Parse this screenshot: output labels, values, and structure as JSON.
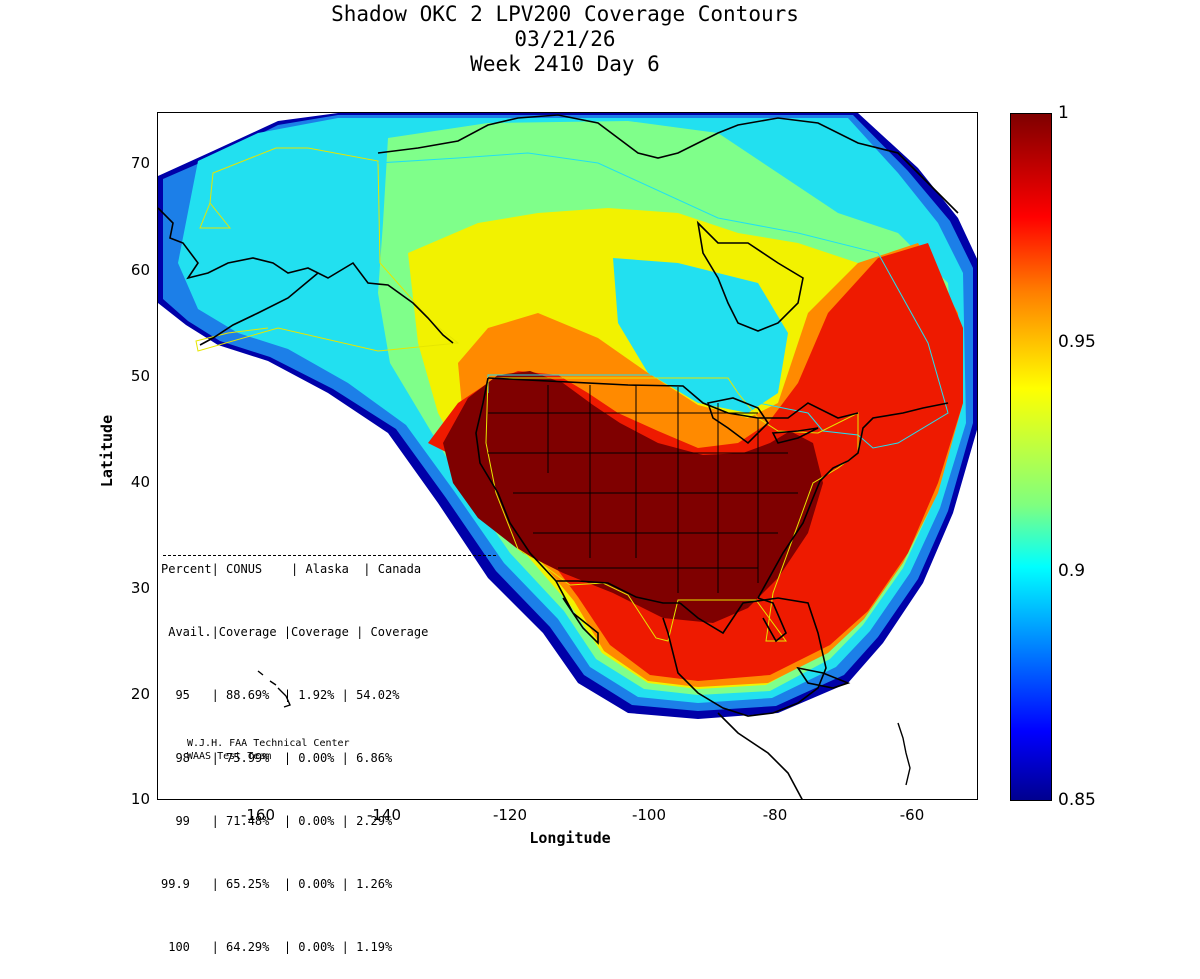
{
  "title": {
    "line1": "Shadow OKC 2 LPV200 Coverage Contours",
    "line2": "03/21/26",
    "line3": "Week 2410 Day 6"
  },
  "axes": {
    "xlabel": "Longitude",
    "ylabel": "Latitude",
    "xticks": [
      "-160",
      "-140",
      "-120",
      "-100",
      "-80",
      "-60"
    ],
    "yticks": [
      "70",
      "60",
      "50",
      "40",
      "30",
      "20",
      "10"
    ]
  },
  "colorbar": {
    "ticks": [
      "1",
      "0.95",
      "0.9",
      "0.85"
    ],
    "min": 0.85,
    "max": 1
  },
  "stats": {
    "header1": "Percent| CONUS    | Alaska  | Canada",
    "header2": " Avail.|Coverage |Coverage | Coverage",
    "rows": [
      "  95   | 88.69%  | 1.92% | 54.02%",
      "  98   | 75.99%  | 0.00% | 6.86%",
      "  99   | 71.48%  | 0.00% | 2.29%",
      "99.9   | 65.25%  | 0.00% | 1.26%",
      " 100   | 64.29%  | 0.00% | 1.19%"
    ]
  },
  "credits": {
    "line1": "W.J.H. FAA Technical Center",
    "line2": "WAAS Test Team"
  },
  "colors": {
    "dark_red": "#7f0000",
    "red": "#ee1a00",
    "orange": "#ff8a00",
    "yellow": "#f2f200",
    "light_green": "#8aff70",
    "cyan": "#00e6ff",
    "blue": "#1c4ad8",
    "navy": "#0000a8",
    "boundary_yellow": "#e6e600"
  }
}
